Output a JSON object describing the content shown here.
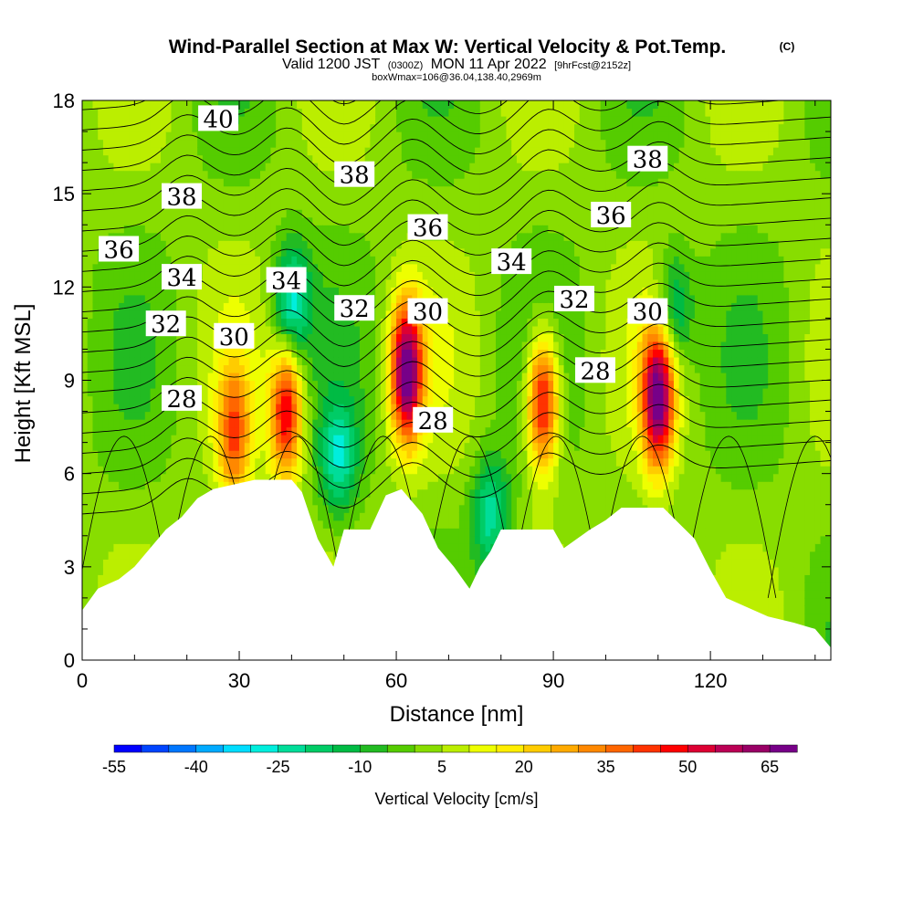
{
  "title_main": "Wind-Parallel Section at Max W: Vertical Velocity & Pot.Temp.",
  "title_c": "(C)",
  "subtitle": {
    "valid": "Valid 1200 JST",
    "utc": "(0300Z)",
    "date": "MON 11 Apr 2022",
    "fcst": "[9hrFcst@2152z]"
  },
  "subtitle2": "boxWmax=106@36.04,138.40,2969m",
  "chart_data": {
    "type": "heatmap",
    "xlabel": "Distance [nm]",
    "ylabel": "Height [Kft MSL]",
    "xlim": [
      0,
      143
    ],
    "ylim": [
      0,
      18
    ],
    "x_ticks": [
      0,
      30,
      60,
      90,
      120
    ],
    "y_ticks": [
      0,
      3,
      6,
      9,
      12,
      15,
      18
    ],
    "colorbar": {
      "label": "Vertical Velocity [cm/s]",
      "min": -55,
      "max": 70,
      "step": 5,
      "tick_labels": [
        -55,
        -40,
        -25,
        -10,
        5,
        20,
        35,
        50,
        65
      ],
      "colors": [
        "#0000ff",
        "#0044ff",
        "#0077ff",
        "#00aaff",
        "#00ddff",
        "#00eedd",
        "#00dd99",
        "#00cc66",
        "#00bb44",
        "#22bb22",
        "#55cc00",
        "#88dd00",
        "#bbee00",
        "#eeff00",
        "#ffee00",
        "#ffcc00",
        "#ffaa00",
        "#ff8800",
        "#ff6600",
        "#ff3300",
        "#ff0000",
        "#dd0033",
        "#bb0055",
        "#990066",
        "#770088"
      ]
    },
    "updraft_cores": [
      {
        "x": 29,
        "height": 7.3,
        "w": 35
      },
      {
        "x": 39,
        "height": 8.0,
        "w": 48
      },
      {
        "x": 62,
        "height": 9.3,
        "w": 68
      },
      {
        "x": 88,
        "height": 8.3,
        "w": 52
      },
      {
        "x": 110,
        "height": 8.5,
        "w": 65
      }
    ],
    "downdraft_cores": [
      {
        "x": 49,
        "height": 6.5,
        "w": -25
      },
      {
        "x": 78,
        "height": 4.7,
        "w": -25
      },
      {
        "x": 40,
        "height": 11.5,
        "w": -30
      },
      {
        "x": 113,
        "height": 11.3,
        "w": -22
      }
    ],
    "terrain": [
      [
        0,
        1.6
      ],
      [
        3,
        2.3
      ],
      [
        7,
        2.6
      ],
      [
        10,
        3.0
      ],
      [
        13,
        3.6
      ],
      [
        16,
        4.2
      ],
      [
        19,
        4.6
      ],
      [
        22,
        5.2
      ],
      [
        25,
        5.5
      ],
      [
        33,
        5.8
      ],
      [
        40,
        5.8
      ],
      [
        42,
        5.4
      ],
      [
        45,
        3.9
      ],
      [
        48,
        3.0
      ],
      [
        50,
        4.2
      ],
      [
        55,
        4.2
      ],
      [
        58,
        5.3
      ],
      [
        61,
        5.5
      ],
      [
        65,
        4.7
      ],
      [
        68,
        3.6
      ],
      [
        71,
        3.0
      ],
      [
        74,
        2.3
      ],
      [
        76,
        3.0
      ],
      [
        78,
        3.5
      ],
      [
        80,
        4.2
      ],
      [
        90,
        4.2
      ],
      [
        92,
        3.6
      ],
      [
        97,
        4.2
      ],
      [
        100,
        4.5
      ],
      [
        103,
        4.9
      ],
      [
        111,
        4.9
      ],
      [
        114,
        4.4
      ],
      [
        117,
        3.9
      ],
      [
        120,
        2.9
      ],
      [
        123,
        2.0
      ],
      [
        127,
        1.7
      ],
      [
        131,
        1.4
      ],
      [
        136,
        1.2
      ],
      [
        140,
        1.0
      ],
      [
        143,
        0.4
      ]
    ],
    "theta_contour_labels": [
      {
        "text": "40",
        "x": 26,
        "y": 17.4
      },
      {
        "text": "38",
        "x": 52,
        "y": 15.6
      },
      {
        "text": "38",
        "x": 19,
        "y": 14.9
      },
      {
        "text": "38",
        "x": 108,
        "y": 16.1
      },
      {
        "text": "36",
        "x": 7,
        "y": 13.2
      },
      {
        "text": "36",
        "x": 66,
        "y": 13.9
      },
      {
        "text": "36",
        "x": 101,
        "y": 14.3
      },
      {
        "text": "34",
        "x": 19,
        "y": 12.3
      },
      {
        "text": "34",
        "x": 39,
        "y": 12.2
      },
      {
        "text": "34",
        "x": 82,
        "y": 12.8
      },
      {
        "text": "32",
        "x": 16,
        "y": 10.8
      },
      {
        "text": "32",
        "x": 52,
        "y": 11.3
      },
      {
        "text": "32",
        "x": 94,
        "y": 11.6
      },
      {
        "text": "30",
        "x": 29,
        "y": 10.4
      },
      {
        "text": "30",
        "x": 66,
        "y": 11.2
      },
      {
        "text": "30",
        "x": 108,
        "y": 11.2
      },
      {
        "text": "28",
        "x": 19,
        "y": 8.4
      },
      {
        "text": "28",
        "x": 67,
        "y": 7.7
      },
      {
        "text": "28",
        "x": 98,
        "y": 9.3
      }
    ]
  }
}
